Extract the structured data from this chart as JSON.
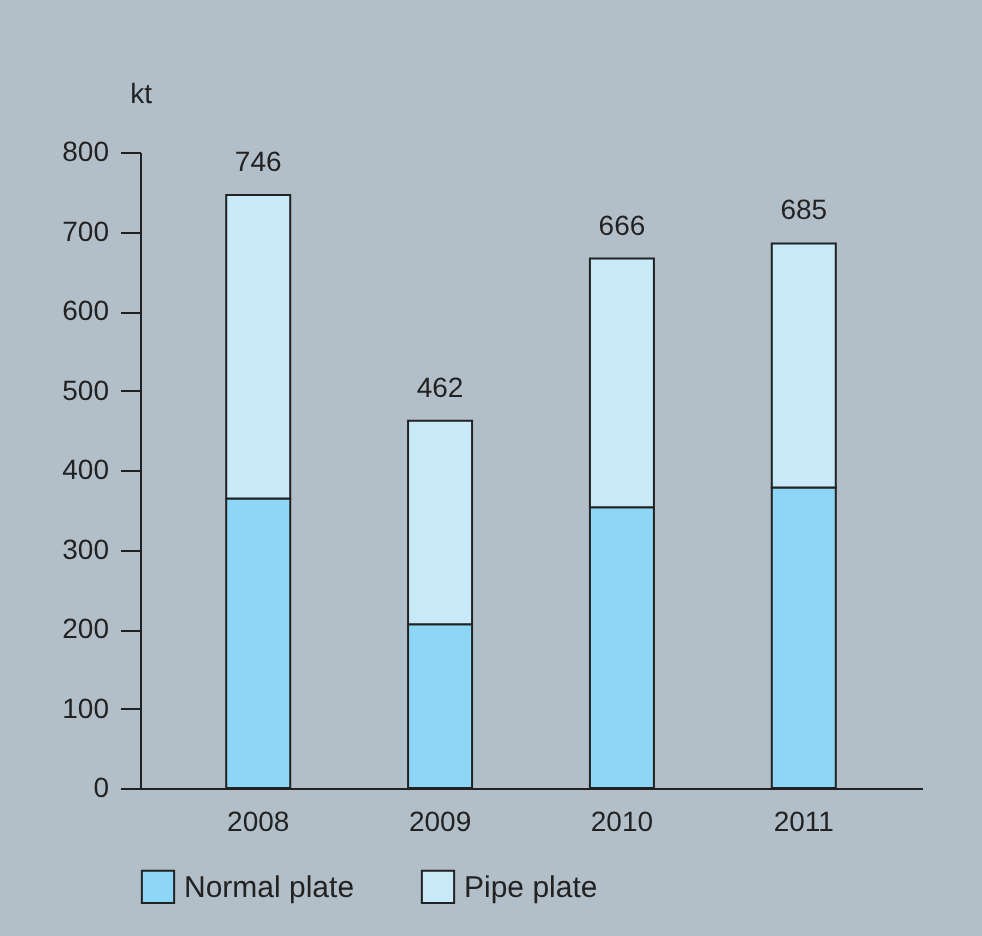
{
  "chart_data": {
    "type": "bar",
    "ylabel": "kt",
    "categories": [
      "2008",
      "2009",
      "2010",
      "2011"
    ],
    "stacked": true,
    "series": [
      {
        "name": "Normal plate",
        "color": "#8ed6f5",
        "values": [
          364,
          206,
          353,
          378
        ]
      },
      {
        "name": "Pipe plate",
        "color": "#c8e9f8",
        "values": [
          382,
          256,
          313,
          307
        ]
      }
    ],
    "ylim": [
      0,
      800
    ],
    "yticks": [
      0,
      100,
      200,
      300,
      400,
      500,
      600,
      700,
      800
    ],
    "totals": [
      "746",
      "462",
      "666",
      "685"
    ],
    "legend": "bottom",
    "grid": false
  }
}
